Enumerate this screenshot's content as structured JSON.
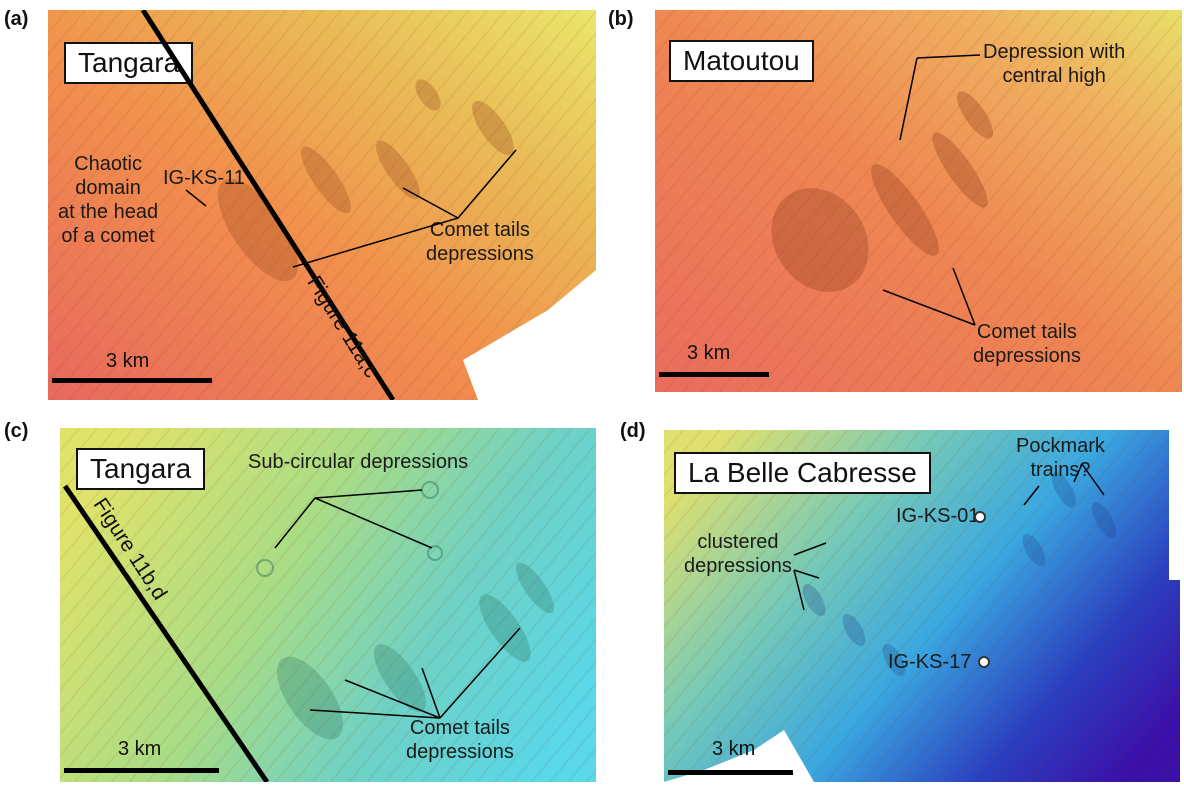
{
  "panels": {
    "a": {
      "label": "(a)",
      "title": "Tangara",
      "annotations": {
        "chaotic": "Chaotic\ndomain\nat the head\nof a comet",
        "core": "IG-KS-11",
        "comet": "Comet tails\ndepressions"
      },
      "profile": "Figure 11a,c",
      "scale": "3 km",
      "colors": [
        "#e8685e",
        "#f2904c",
        "#e9bd57",
        "#ebe76b"
      ]
    },
    "b": {
      "label": "(b)",
      "title": "Matoutou",
      "annotations": {
        "depression": "Depression with\ncentral high",
        "comet": "Comet tails\ndepressions"
      },
      "scale": "3 km",
      "colors": [
        "#ea6c5d",
        "#ef8752",
        "#f0b160",
        "#e7e069"
      ]
    },
    "c": {
      "label": "(c)",
      "title": "Tangara",
      "annotations": {
        "subcircular": "Sub-circular depressions",
        "comet": "Comet tails\ndepressions"
      },
      "profile": "Figure 11b,d",
      "scale": "3 km",
      "colors": [
        "#e0e36a",
        "#a8dc86",
        "#6fd1c4",
        "#5ad7e8"
      ]
    },
    "d": {
      "label": "(d)",
      "title": "La Belle Cabresse",
      "annotations": {
        "pockmark": "Pockmark\ntrains?",
        "core1": "IG-KS-01",
        "clustered": "clustered\ndepressions",
        "core2": "IG-KS-17"
      },
      "scale": "3 km",
      "colors": [
        "#e0e06e",
        "#74c9b8",
        "#3aa7e0",
        "#2a3fc0",
        "#3b10a8"
      ]
    }
  }
}
